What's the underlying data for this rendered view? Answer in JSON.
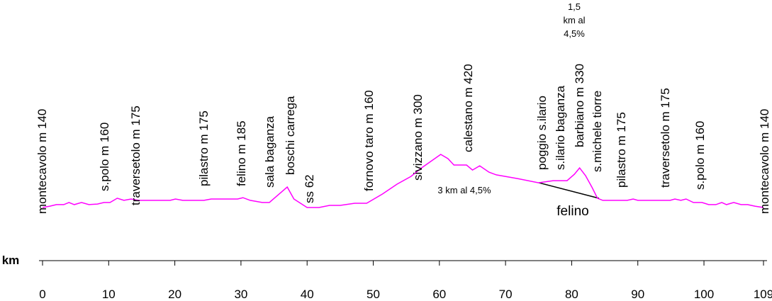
{
  "chart_data": {
    "type": "line",
    "x_label": "km",
    "x": [
      0,
      1.1,
      2.1,
      3.2,
      4.0,
      4.8,
      5.9,
      7.0,
      8.3,
      9.3,
      10.2,
      11.3,
      12.3,
      13.4,
      14.5,
      19.3,
      20.1,
      21.2,
      24.4,
      25.5,
      29.5,
      30.3,
      31.4,
      33.2,
      34.3,
      37.0,
      38.0,
      40.0,
      41.8,
      43.4,
      45.0,
      47.2,
      49.0,
      51.4,
      53.6,
      55.7,
      57.3,
      60.2,
      61.3,
      62.2,
      64.1,
      65.0,
      66.1,
      67.5,
      68.6,
      71.8,
      75.0,
      77.2,
      79.3,
      80.4,
      81.2,
      82.1,
      83.1,
      83.9,
      84.7,
      88.4,
      89.3,
      90.0,
      94.9,
      95.6,
      96.5,
      97.3,
      98.4,
      99.7,
      100.7,
      101.8,
      102.7,
      103.4,
      104.5,
      105.6,
      106.6,
      107.7,
      109
    ],
    "values": [
      140,
      149,
      159,
      159,
      173,
      159,
      173,
      159,
      163,
      173,
      173,
      201,
      187,
      196,
      187,
      187,
      196,
      187,
      187,
      196,
      196,
      205,
      187,
      173,
      173,
      275,
      196,
      140,
      140,
      154,
      154,
      168,
      168,
      229,
      294,
      345,
      401,
      490,
      462,
      420,
      420,
      387,
      415,
      373,
      355,
      331,
      303,
      317,
      317,
      359,
      401,
      350,
      271,
      201,
      187,
      187,
      196,
      187,
      187,
      196,
      187,
      196,
      173,
      173,
      159,
      159,
      173,
      159,
      173,
      159,
      159,
      149,
      140
    ],
    "color": "#ff00ff",
    "xlim": [
      0,
      109
    ],
    "xticks": [
      0,
      10,
      20,
      30,
      40,
      50,
      60,
      70,
      80,
      90,
      100,
      109
    ],
    "ylim": [
      0,
      1000
    ],
    "places": [
      "montecavolo m 140",
      "s.polo m 160",
      "traversetolo m 175",
      "pilastro m 175",
      "felino m 185",
      "sala baganza",
      "boschi carrega",
      "ss 62",
      "fornovo taro m 160",
      "sivizzano m 300",
      "calestano m 420",
      "poggio s.ilario",
      "s.ilario baganza",
      "barbiano m 330",
      "s.michele tiorre",
      "pilastro m 175",
      "traversetolo m 175",
      "s.polo m 160",
      "montecavolo m 140"
    ],
    "annotations": [
      "3 km  al 4,5%",
      "felino",
      "1,5\nkm al\n4,5%"
    ]
  }
}
